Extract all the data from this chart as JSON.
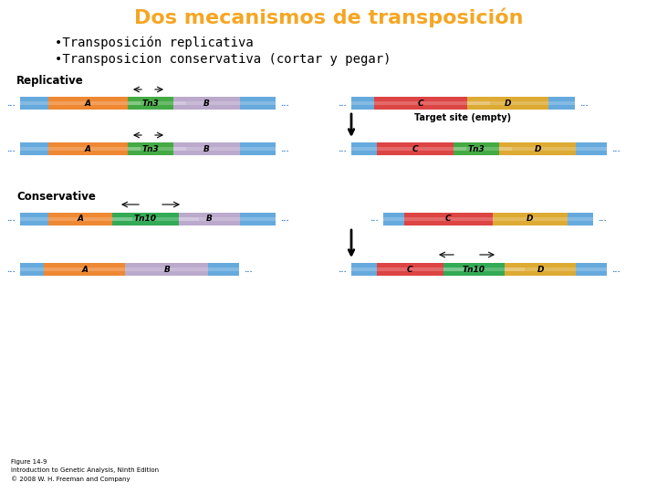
{
  "title": "Dos mecanismos de transposición",
  "title_color": "#F5A623",
  "bullet1": "•Transposición replicativa",
  "bullet2": "•Transposicion conservativa (cortar y pegar)",
  "bg_color": "#ffffff",
  "colors": {
    "blue": "#5599CC",
    "blue_stripe": "#4488BB",
    "blue_light": "#66AADD",
    "orange": "#EE8833",
    "green_tn3": "#44AA44",
    "green_tn10": "#33AA55",
    "lavender": "#BBAACC",
    "red": "#DD4444",
    "pink": "#CC3377",
    "purple_flank": "#8866AA",
    "gold": "#DDAA33",
    "dot_color": "#4488CC"
  },
  "replicative_label": "Replicative",
  "conservative_label": "Conservative",
  "target_site_label": "Target site (empty)",
  "figure_caption": "Figure 14-9\nIntroduction to Genetic Analysis, Ninth Edition\n© 2008 W. H. Freeman and Company"
}
